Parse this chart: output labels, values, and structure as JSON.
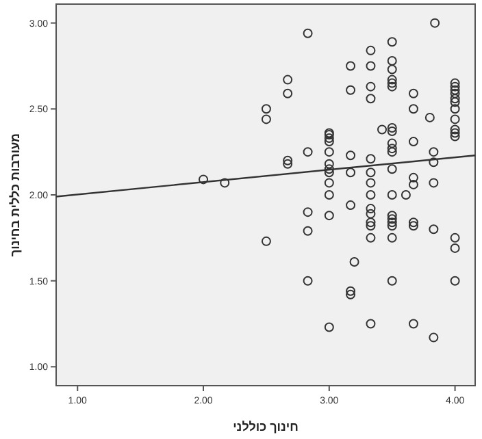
{
  "chart_data": {
    "type": "scatter",
    "xlabel": "חינוך כוללני",
    "ylabel": "מעורבות כללית בחינוך",
    "xlim": [
      0.83,
      4.16
    ],
    "ylim": [
      0.89,
      3.11
    ],
    "xticks": [
      {
        "value": 1,
        "label": "1.00"
      },
      {
        "value": 2,
        "label": "2.00"
      },
      {
        "value": 3,
        "label": "3.00"
      },
      {
        "value": 4,
        "label": "4.00"
      }
    ],
    "yticks": [
      {
        "value": 1,
        "label": "1.00"
      },
      {
        "value": 1.5,
        "label": "1.50"
      },
      {
        "value": 2,
        "label": "2.00"
      },
      {
        "value": 2.5,
        "label": "2.50"
      },
      {
        "value": 3,
        "label": "3.00"
      }
    ],
    "grid": false,
    "marker": "circle",
    "series": [
      {
        "color": "#333333",
        "x": [
          2,
          2.17,
          2.5,
          2.5,
          2.5,
          2.67,
          2.67,
          2.67,
          2.67,
          2.83,
          2.83,
          2.83,
          2.83,
          2.83,
          3,
          3,
          3,
          3,
          3,
          3,
          3,
          3,
          3,
          3,
          3,
          3,
          3.17,
          3.17,
          3.17,
          3.17,
          3.17,
          3.2,
          3.17,
          3.17,
          3.33,
          3.33,
          3.33,
          3.33,
          3.33,
          3.33,
          3.33,
          3.33,
          3.33,
          3.33,
          3.33,
          3.33,
          3.33,
          3.33,
          3.42,
          3.5,
          3.5,
          3.5,
          3.5,
          3.5,
          3.5,
          3.5,
          3.5,
          3.5,
          3.5,
          3.5,
          3.5,
          3.5,
          3.5,
          3.5,
          3.5,
          3.5,
          3.5,
          3.5,
          3.67,
          3.67,
          3.67,
          3.67,
          3.67,
          3.61,
          3.67,
          3.67,
          3.67,
          3.84,
          3.8,
          3.83,
          3.83,
          3.83,
          3.83,
          3.83,
          4,
          4,
          4,
          4,
          4,
          4,
          4,
          4,
          4,
          4,
          4,
          4,
          4,
          4
        ],
        "values": [
          2.09,
          2.07,
          2.5,
          2.44,
          1.73,
          2.67,
          2.59,
          2.2,
          2.18,
          2.94,
          2.25,
          1.9,
          1.79,
          1.5,
          2.36,
          2.35,
          2.33,
          2.31,
          2.25,
          2.18,
          2.15,
          2.13,
          2.07,
          2,
          1.88,
          1.23,
          2.75,
          2.61,
          2.23,
          2.13,
          1.94,
          1.61,
          1.44,
          1.42,
          2.84,
          2.75,
          2.63,
          2.56,
          2.21,
          2.13,
          2.07,
          2,
          1.92,
          1.89,
          1.84,
          1.82,
          1.75,
          1.25,
          2.38,
          2.89,
          2.78,
          2.73,
          2.67,
          2.65,
          2.63,
          2.39,
          2.37,
          2.3,
          2.27,
          2.25,
          2.15,
          2,
          1.88,
          1.86,
          1.84,
          1.82,
          1.75,
          1.5,
          2.59,
          2.5,
          2.31,
          2.1,
          2.06,
          2,
          1.84,
          1.82,
          1.25,
          3,
          2.45,
          2.25,
          2.19,
          2.07,
          1.8,
          1.17,
          2.65,
          2.63,
          2.61,
          2.59,
          2.56,
          2.54,
          2.5,
          2.44,
          2.38,
          2.36,
          2.34,
          1.75,
          1.69,
          1.5
        ]
      },
      {
        "type": "line",
        "marker": "none",
        "color": "#333333",
        "x": [
          0.83,
          4.16
        ],
        "values": [
          1.99,
          2.23
        ]
      }
    ]
  }
}
